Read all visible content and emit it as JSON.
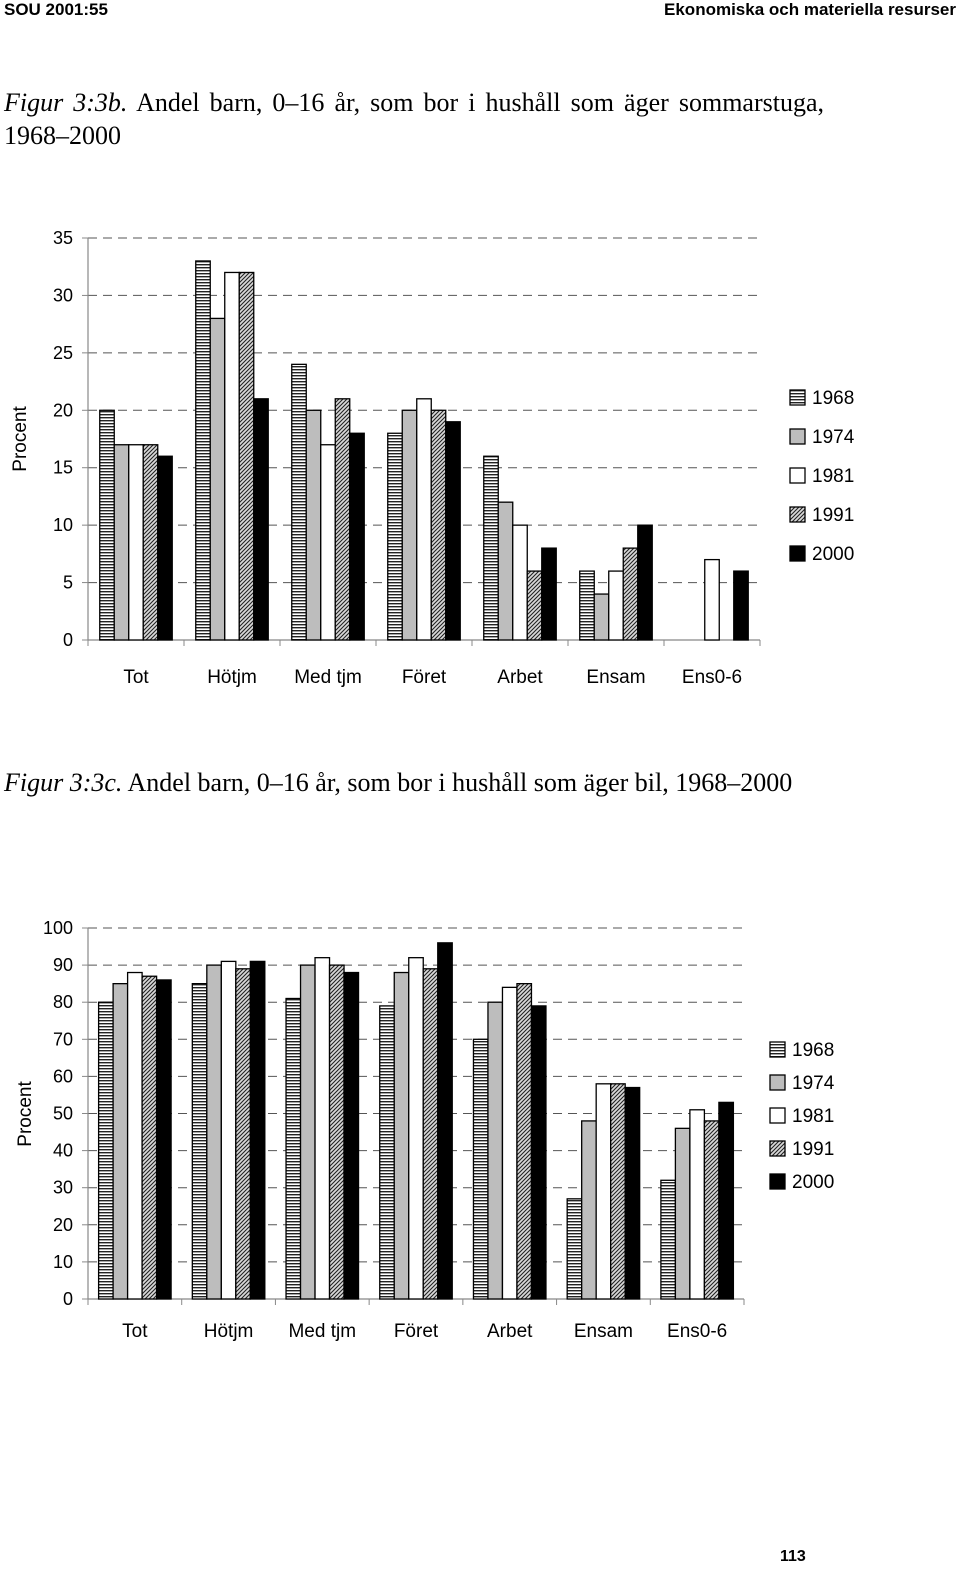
{
  "header": {
    "left": "SOU 2001:55",
    "right": "Ekonomiska och materiella resurser"
  },
  "page_number": "113",
  "chart_data": [
    {
      "type": "bar",
      "figure_label": "Figur 3:3b.",
      "title": "Andel barn, 0–16 år, som bor i hushåll som äger sommarstuga, 1968–2000",
      "ylabel": "Procent",
      "xlabel": "",
      "ylim": [
        0,
        35
      ],
      "yticks": [
        0,
        5,
        10,
        15,
        20,
        25,
        30,
        35
      ],
      "grid": true,
      "legend_position": "right",
      "categories": [
        "Tot",
        "Hötjm",
        "Med tjm",
        "Föret",
        "Arbet",
        "Ensam",
        "Ens0-6"
      ],
      "series": [
        {
          "name": "1968",
          "pattern": "hlines",
          "values": [
            20,
            33,
            24,
            18,
            16,
            6,
            null
          ]
        },
        {
          "name": "1974",
          "pattern": "gray",
          "values": [
            17,
            28,
            20,
            20,
            12,
            4,
            null
          ]
        },
        {
          "name": "1981",
          "pattern": "white",
          "values": [
            17,
            32,
            17,
            21,
            10,
            6,
            7
          ]
        },
        {
          "name": "1991",
          "pattern": "diag",
          "values": [
            17,
            32,
            21,
            20,
            6,
            8,
            null
          ]
        },
        {
          "name": "2000",
          "pattern": "black",
          "values": [
            16,
            21,
            18,
            19,
            8,
            10,
            6
          ]
        }
      ]
    },
    {
      "type": "bar",
      "figure_label": "Figur 3:3c.",
      "title": "Andel barn, 0–16 år, som bor i hushåll som äger bil, 1968–2000",
      "ylabel": "Procent",
      "xlabel": "",
      "ylim": [
        0,
        100
      ],
      "yticks": [
        0,
        10,
        20,
        30,
        40,
        50,
        60,
        70,
        80,
        90,
        100
      ],
      "grid": true,
      "legend_position": "right",
      "categories": [
        "Tot",
        "Hötjm",
        "Med tjm",
        "Föret",
        "Arbet",
        "Ensam",
        "Ens0-6"
      ],
      "series": [
        {
          "name": "1968",
          "pattern": "hlines",
          "values": [
            80,
            85,
            81,
            79,
            70,
            27,
            32
          ]
        },
        {
          "name": "1974",
          "pattern": "gray",
          "values": [
            85,
            90,
            90,
            88,
            80,
            48,
            46
          ]
        },
        {
          "name": "1981",
          "pattern": "white",
          "values": [
            88,
            91,
            92,
            92,
            84,
            58,
            51
          ]
        },
        {
          "name": "1991",
          "pattern": "diag",
          "values": [
            87,
            89,
            90,
            89,
            85,
            58,
            48
          ]
        },
        {
          "name": "2000",
          "pattern": "black",
          "values": [
            86,
            91,
            88,
            96,
            79,
            57,
            53
          ]
        }
      ]
    }
  ]
}
